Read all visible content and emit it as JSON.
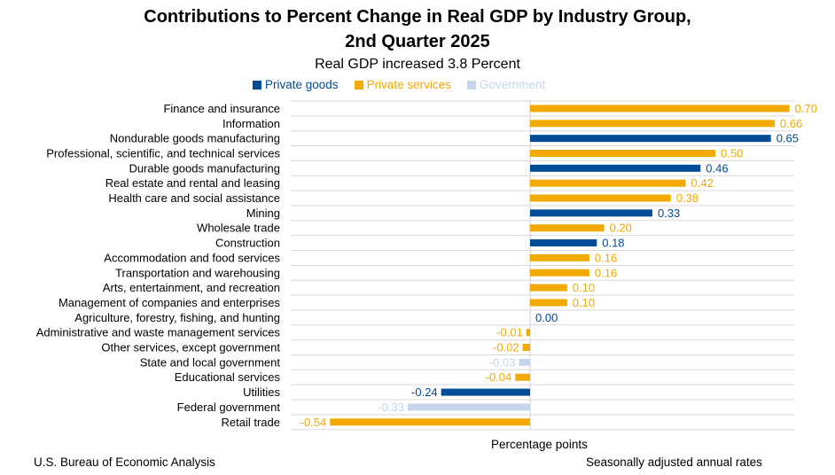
{
  "chart_data": {
    "type": "bar",
    "orientation": "horizontal",
    "title": "Contributions to Percent Change in Real GDP by Industry Group,",
    "title_line2": "2nd Quarter 2025",
    "subtitle": "Real GDP increased 3.8 Percent",
    "xlabel": "Percentage points",
    "legend_position": "top",
    "grid": true,
    "xlim": [
      -0.65,
      0.7
    ],
    "series_colors": {
      "Private goods": "#004C97",
      "Private services": "#F2A900",
      "Government": "#C5D6EC"
    },
    "legend": [
      "Private goods",
      "Private services",
      "Government"
    ],
    "categories": [
      "Finance and insurance",
      "Information",
      "Nondurable goods manufacturing",
      "Professional, scientific, and technical services",
      "Durable goods manufacturing",
      "Real estate and rental and leasing",
      "Health care and social assistance",
      "Mining",
      "Wholesale trade",
      "Construction",
      "Accommodation and food services",
      "Transportation and warehousing",
      "Arts, entertainment, and recreation",
      "Management of companies and enterprises",
      "Agriculture, forestry, fishing, and hunting",
      "Administrative and waste management services",
      "Other services, except government",
      "State and local government",
      "Educational services",
      "Utilities",
      "Federal government",
      "Retail trade"
    ],
    "values": [
      0.7,
      0.66,
      0.65,
      0.5,
      0.46,
      0.42,
      0.38,
      0.33,
      0.2,
      0.18,
      0.16,
      0.16,
      0.1,
      0.1,
      0.0,
      -0.01,
      -0.02,
      -0.03,
      -0.04,
      -0.24,
      -0.33,
      -0.54
    ],
    "labels": [
      "0.70",
      "0.66",
      "0.65",
      "0.50",
      "0.46",
      "0.42",
      "0.38",
      "0.33",
      "0.20",
      "0.18",
      "0.16",
      "0.16",
      "0.10",
      "0.10",
      "0.00",
      "-0.01",
      "-0.02",
      "-0.03",
      "-0.04",
      "-0.24",
      "-0.33",
      "-0.54"
    ],
    "groups": [
      "Private services",
      "Private services",
      "Private goods",
      "Private services",
      "Private goods",
      "Private services",
      "Private services",
      "Private goods",
      "Private services",
      "Private goods",
      "Private services",
      "Private services",
      "Private services",
      "Private services",
      "Private goods",
      "Private services",
      "Private services",
      "Government",
      "Private services",
      "Private goods",
      "Government",
      "Private services"
    ]
  },
  "footer": {
    "source": "U.S. Bureau of Economic Analysis",
    "note": "Seasonally adjusted annual rates"
  }
}
